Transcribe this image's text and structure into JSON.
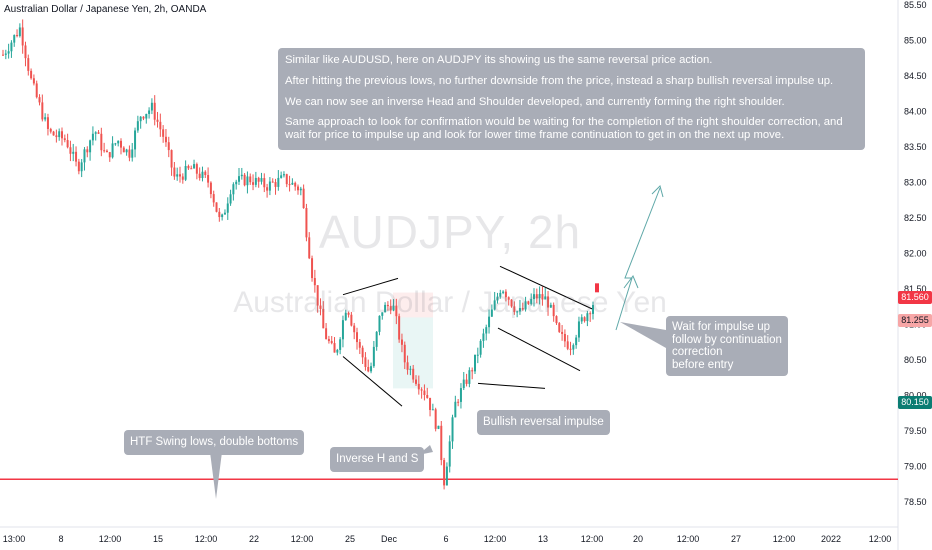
{
  "header": {
    "title": "Australian Dollar / Japanese Yen, 2h, OANDA"
  },
  "watermark": {
    "symbol": "AUDJPY, 2h",
    "name": "Australian Dollar / Japanese Yen"
  },
  "colors": {
    "up": "#26a69a",
    "down": "#ef5350",
    "support_line": "#f23645",
    "annotation_line": "#000000",
    "arrow": "#5fa8a8",
    "callout_bg": "#a9adb7",
    "tag_red": "#f23645",
    "tag_pink": "#f7a6a6",
    "tag_teal": "#0b7d73"
  },
  "chart_data": {
    "type": "candlestick",
    "title": "",
    "ylabel": "",
    "ylim": [
      78.5,
      85.5
    ],
    "y_ticks": [
      "85.50",
      "85.00",
      "84.50",
      "84.00",
      "83.50",
      "83.00",
      "82.50",
      "82.00",
      "81.50",
      "81.00",
      "80.50",
      "80.00",
      "79.50",
      "79.00",
      "78.50"
    ],
    "x_ticks": [
      "13:00",
      "8",
      "12:00",
      "15",
      "12:00",
      "22",
      "12:00",
      "25",
      "Dec",
      "6",
      "12:00",
      "13",
      "12:00",
      "20",
      "12:00",
      "27",
      "12:00",
      "2022",
      "12:00"
    ],
    "trend_path": [
      [
        0,
        84.8
      ],
      [
        3,
        85.18
      ],
      [
        5,
        84.4
      ],
      [
        8,
        83.7
      ],
      [
        11,
        83.6
      ],
      [
        13,
        83.2
      ],
      [
        16,
        83.75
      ],
      [
        18,
        83.35
      ],
      [
        20,
        83.6
      ],
      [
        22,
        83.4
      ],
      [
        24,
        83.95
      ],
      [
        26,
        84.05
      ],
      [
        28,
        83.65
      ],
      [
        30,
        83.05
      ],
      [
        33,
        83.2
      ],
      [
        36,
        83.0
      ],
      [
        38,
        82.4
      ],
      [
        40,
        83.0
      ],
      [
        43,
        83.05
      ],
      [
        46,
        82.95
      ],
      [
        49,
        83.05
      ],
      [
        52,
        82.9
      ],
      [
        54,
        81.7
      ],
      [
        56,
        80.9
      ],
      [
        58,
        80.55
      ],
      [
        60,
        81.3
      ],
      [
        62,
        80.7
      ],
      [
        64,
        80.3
      ],
      [
        66,
        81.2
      ],
      [
        68,
        81.3
      ],
      [
        70,
        80.5
      ],
      [
        72,
        80.25
      ],
      [
        74,
        80.0
      ],
      [
        76,
        79.5
      ],
      [
        77,
        78.8
      ],
      [
        79,
        79.9
      ],
      [
        82,
        80.4
      ],
      [
        85,
        81.1
      ],
      [
        87,
        81.55
      ],
      [
        90,
        81.15
      ],
      [
        93,
        81.4
      ],
      [
        95,
        81.35
      ],
      [
        97,
        80.85
      ],
      [
        99,
        80.7
      ],
      [
        101,
        81.05
      ],
      [
        103,
        81.3
      ]
    ],
    "support_level": 78.82,
    "current_price": "81.560",
    "price_labels": {
      "current": "81.560",
      "bid": "81.255",
      "low": "80.150"
    },
    "annotations": [
      {
        "id": "main-note",
        "lines": [
          "Similar like AUDUSD, here on AUDJPY its showing us the same reversal price action.",
          "After hitting the previous lows, no further downside from the price, instead a sharp bullish reversal impulse up.",
          "We can now see an inverse Head and Shoulder developed, and currently forming the right shoulder.",
          "Same approach to look for confirmation would be waiting for the completion of the right shoulder correction, and wait for price to impulse up and look for lower time frame continuation to get in on the next up move."
        ]
      },
      {
        "id": "htf-note",
        "text": "HTF Swing lows, double bottoms"
      },
      {
        "id": "ihs-note",
        "text": "Inverse H and S"
      },
      {
        "id": "bullish-note",
        "text": "Bullish reversal impulse"
      },
      {
        "id": "wait-note",
        "lines": [
          "Wait for impulse up",
          "follow by continuation",
          "correction",
          "before entry"
        ]
      }
    ]
  }
}
